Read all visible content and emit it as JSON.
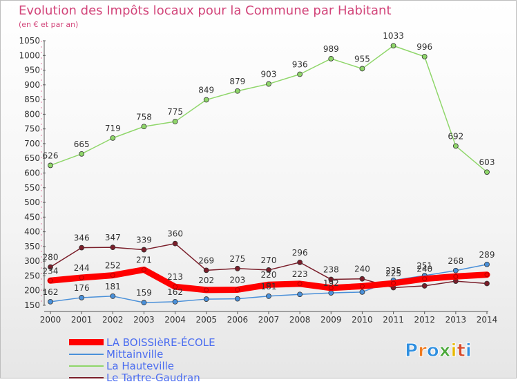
{
  "header": {
    "title": "Evolution des Impôts locaux pour la Commune par Habitant",
    "subtitle": "(en € et par an)"
  },
  "brand": {
    "text": "Proxiti",
    "colors": [
      "#2f8fe0",
      "#f07a1e",
      "#2f8fe0",
      "#4aa83a",
      "#e6b800",
      "#d64a2a",
      "#2f8fe0"
    ]
  },
  "chart_data": {
    "type": "line",
    "x": [
      "2000",
      "2001",
      "2002",
      "2003",
      "2004",
      "2005",
      "2006",
      "2007",
      "2008",
      "2009",
      "2010",
      "2011",
      "2012",
      "2013",
      "2014"
    ],
    "ylim": [
      150,
      1050
    ],
    "yticks": [
      150,
      200,
      250,
      300,
      350,
      400,
      450,
      500,
      550,
      600,
      650,
      700,
      750,
      800,
      850,
      900,
      950,
      1000,
      1050
    ],
    "grid": false,
    "legend_position": "bottom-left",
    "series": [
      {
        "name": "LA BOISSIèRE-ÉCOLE",
        "color": "#ff0000",
        "values": [
          234,
          244,
          252,
          271,
          213,
          202,
          203,
          220,
          223,
          209,
          215,
          225,
          240,
          248,
          254
        ],
        "labels": [
          "234",
          "244",
          "252",
          "271",
          "213",
          "202",
          "203",
          "220",
          "223",
          "",
          "",
          "225",
          "240",
          "",
          ""
        ]
      },
      {
        "name": "Mittainville",
        "color": "#4a90d9",
        "values": [
          162,
          176,
          181,
          159,
          162,
          171,
          172,
          181,
          187,
          192,
          195,
          235,
          251,
          268,
          289
        ],
        "labels": [
          "162",
          "176",
          "181",
          "159",
          "162",
          "",
          "",
          "181",
          "",
          "192",
          "",
          "235",
          "251",
          "268",
          "289"
        ]
      },
      {
        "name": "La Hauteville",
        "color": "#8fd66a",
        "values": [
          626,
          665,
          719,
          758,
          775,
          849,
          879,
          903,
          936,
          989,
          955,
          1033,
          996,
          692,
          603
        ],
        "labels": [
          "626",
          "665",
          "719",
          "758",
          "775",
          "849",
          "879",
          "903",
          "936",
          "989",
          "955",
          "1033",
          "996",
          "692",
          "603"
        ]
      },
      {
        "name": "Le Tartre-Gaudran",
        "color": "#7a1e2a",
        "values": [
          280,
          346,
          347,
          339,
          360,
          269,
          275,
          270,
          296,
          238,
          240,
          210,
          216,
          232,
          224
        ],
        "labels": [
          "280",
          "346",
          "347",
          "339",
          "360",
          "269",
          "275",
          "270",
          "296",
          "238",
          "240",
          "",
          "",
          "",
          ""
        ]
      }
    ]
  }
}
